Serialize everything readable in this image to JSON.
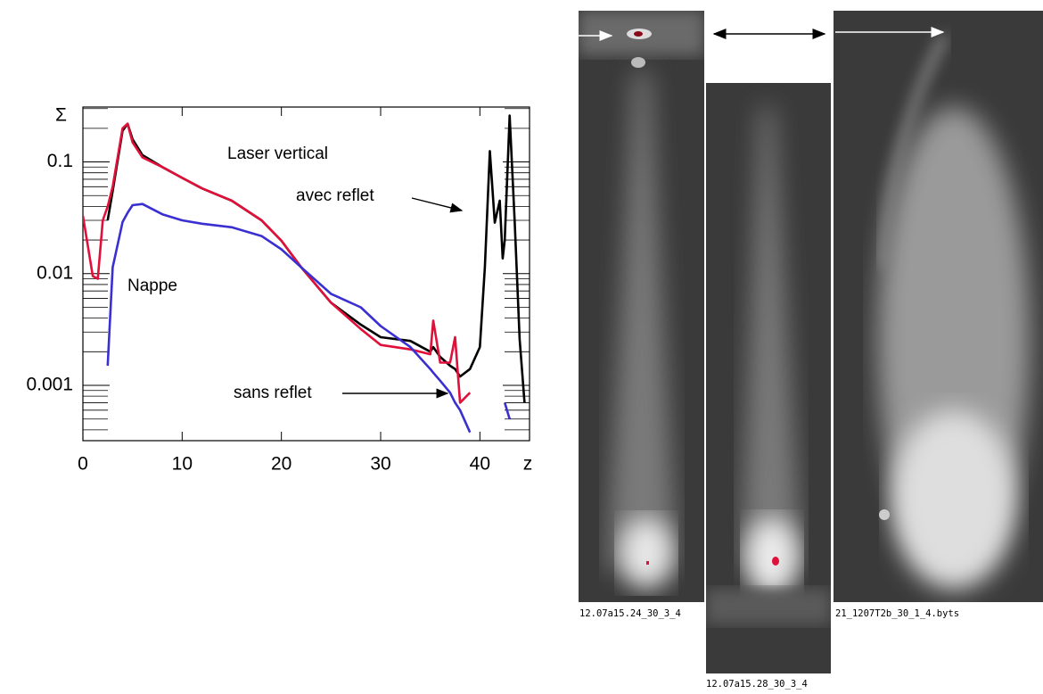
{
  "chart_data": {
    "type": "line",
    "yscale": "log",
    "xlabel": "z",
    "ylabel": "Σ",
    "xlim": [
      0,
      45
    ],
    "xticks": [
      0,
      10,
      20,
      30,
      40
    ],
    "ylim": [
      0.00032,
      0.31
    ],
    "yticks": [
      0.001,
      0.01,
      0.1
    ],
    "annotations": [
      "Laser vertical",
      "avec reflet",
      "Nappe",
      "sans reflet"
    ],
    "x": [
      0,
      1,
      1.5,
      2,
      2.5,
      3,
      4,
      4.5,
      5,
      6,
      8,
      10,
      12,
      15,
      18,
      20,
      22,
      25,
      28,
      30,
      33,
      35,
      35.3,
      36,
      37,
      37.5,
      38,
      39,
      40,
      40.5,
      41,
      41.5,
      42,
      42.3,
      42.5,
      43,
      43.5,
      44,
      44.5
    ],
    "series": [
      {
        "color": "#000000",
        "values": [
          null,
          null,
          null,
          null,
          0.03,
          0.055,
          0.19,
          0.22,
          0.16,
          0.115,
          0.09,
          0.072,
          0.058,
          0.045,
          0.03,
          0.0197,
          0.0114,
          0.0055,
          0.0035,
          0.0027,
          0.0025,
          0.002,
          0.0022,
          0.0018,
          0.0015,
          0.0014,
          0.0012,
          0.0014,
          0.0022,
          0.0114,
          0.125,
          0.0286,
          0.045,
          0.0137,
          0.02,
          0.26,
          0.03,
          0.0026,
          0.0007
        ]
      },
      {
        "color": "#e0103a",
        "values": [
          0.033,
          0.0095,
          0.009,
          0.03,
          0.04,
          0.06,
          0.2,
          0.22,
          0.15,
          0.11,
          0.09,
          0.072,
          0.058,
          0.045,
          0.03,
          0.0197,
          0.0114,
          0.0055,
          0.0032,
          0.0023,
          0.0021,
          0.0019,
          0.0038,
          0.0016,
          0.0016,
          0.0027,
          0.0007,
          0.00086,
          null,
          null,
          null,
          null,
          null,
          null,
          null,
          null,
          null,
          null,
          null
        ]
      },
      {
        "color": "#3a2fd0",
        "values": [
          null,
          null,
          null,
          null,
          0.0015,
          0.0114,
          0.029,
          0.035,
          0.041,
          0.042,
          0.034,
          0.03,
          0.028,
          0.026,
          0.0217,
          0.0165,
          0.0114,
          0.0066,
          0.005,
          0.0034,
          0.0022,
          0.0014,
          0.0013,
          0.0011,
          0.00086,
          0.0007,
          0.0006,
          0.00038,
          null,
          null,
          null,
          null,
          null,
          null,
          0.0007,
          0.0005,
          null,
          null,
          null
        ]
      }
    ]
  },
  "figures": [
    {
      "caption": "12.07a15.24_30_3_4"
    },
    {
      "caption": "12.07a15.28_30_3_4"
    },
    {
      "caption": "21_1207T2b_30_1_4.byts"
    }
  ]
}
